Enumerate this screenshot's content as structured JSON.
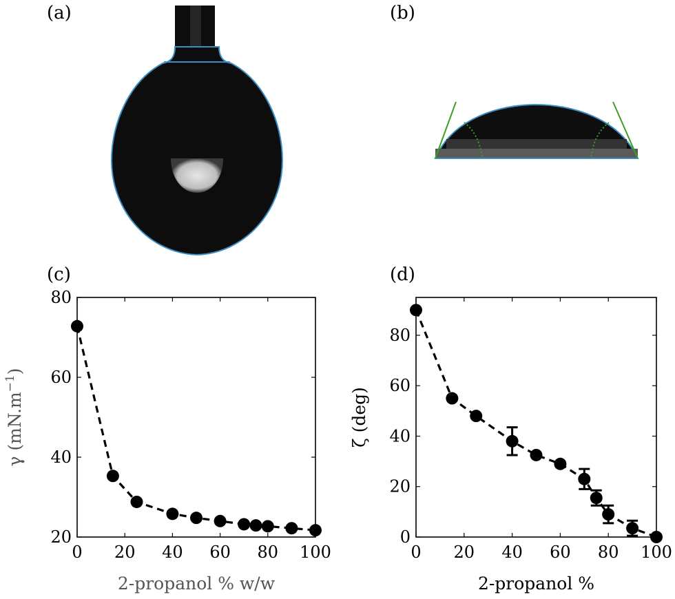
{
  "panels": {
    "a_label": "(a)",
    "b_label": "(b)",
    "c_label": "(c)",
    "d_label": "(d)"
  },
  "colors": {
    "marker": "#000000",
    "line": "#000000",
    "photo_background": "#0d0d0d",
    "contour": "#3a8fc4",
    "tangent": "#3aa020"
  },
  "chart_data": [
    {
      "id": "c",
      "type": "line",
      "title": "",
      "xlabel": "2-propanol % w/w",
      "ylabel": "γ (mN.m⁻¹)",
      "ylabel_main": "γ (mN.m",
      "ylabel_sup": "−1",
      "ylabel_close": ")",
      "xlim": [
        0,
        100
      ],
      "ylim": [
        20,
        80
      ],
      "xticks": [
        "0",
        "20",
        "40",
        "60",
        "80",
        "100"
      ],
      "yticks": [
        "20",
        "40",
        "60",
        "80"
      ],
      "line_style": "dashed",
      "marker": "circle",
      "series": [
        {
          "x": [
            0,
            15,
            25,
            40,
            50,
            60,
            70,
            75,
            80,
            90,
            100
          ],
          "y": [
            72.8,
            35.3,
            28.8,
            25.8,
            24.8,
            24.0,
            23.2,
            22.9,
            22.7,
            22.2,
            21.7
          ]
        }
      ]
    },
    {
      "id": "d",
      "type": "line",
      "title": "",
      "xlabel": "2-propanol %",
      "ylabel": "ζ (deg)",
      "xlim": [
        0,
        100
      ],
      "ylim": [
        0,
        95
      ],
      "xticks": [
        "0",
        "20",
        "40",
        "60",
        "80",
        "100"
      ],
      "yticks": [
        "0",
        "20",
        "40",
        "60",
        "80"
      ],
      "line_style": "dashed",
      "marker": "circle",
      "series": [
        {
          "x": [
            0,
            15,
            25,
            40,
            50,
            60,
            70,
            75,
            80,
            90,
            100
          ],
          "y": [
            90,
            55,
            48,
            38,
            32.5,
            29,
            23,
            15.5,
            9,
            3.5,
            0
          ],
          "err": [
            0,
            0,
            0,
            5.5,
            0,
            0,
            4,
            3,
            3.5,
            3,
            0
          ]
        }
      ]
    }
  ]
}
